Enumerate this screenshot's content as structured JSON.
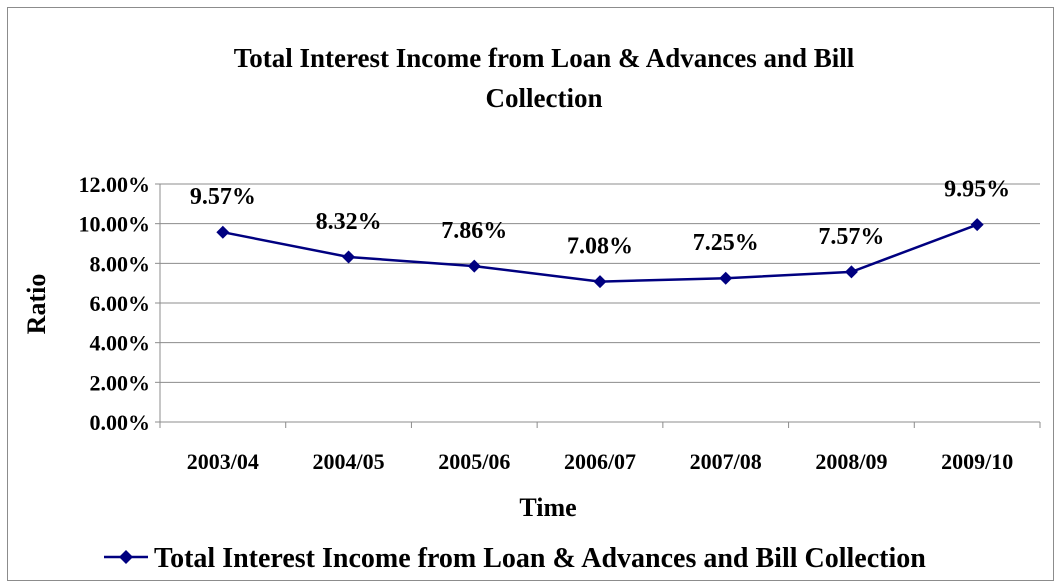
{
  "chart_data": {
    "type": "line",
    "title_lines": [
      "Total Interest Income from Loan & Advances and Bill",
      "Collection"
    ],
    "xlabel": "Time",
    "ylabel": "Ratio",
    "categories": [
      "2003/04",
      "2004/05",
      "2005/06",
      "2006/07",
      "2007/08",
      "2008/09",
      "2009/10"
    ],
    "series": [
      {
        "name": "Total Interest Income from Loan & Advances and Bill Collection",
        "values": [
          9.57,
          8.32,
          7.86,
          7.08,
          7.25,
          7.57,
          9.95
        ],
        "labels": [
          "9.57%",
          "8.32%",
          "7.86%",
          "7.08%",
          "7.25%",
          "7.57%",
          "9.95%"
        ],
        "color": "#000080"
      }
    ],
    "yticks": [
      "0.00%",
      "2.00%",
      "4.00%",
      "6.00%",
      "8.00%",
      "10.00%",
      "12.00%"
    ],
    "ylim": [
      0,
      12
    ],
    "grid": true,
    "legend_position": "bottom"
  }
}
